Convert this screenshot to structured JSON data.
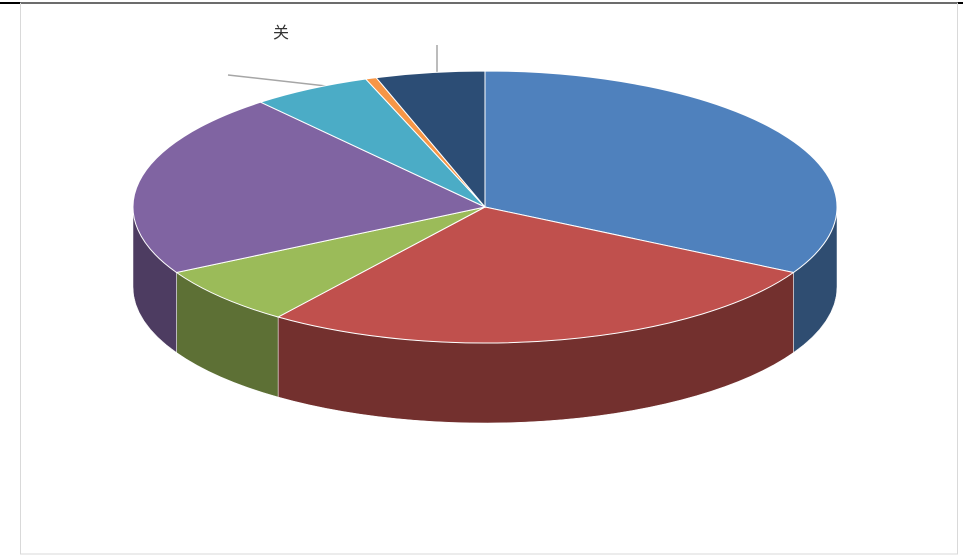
{
  "chart_data": {
    "type": "pie3d",
    "annotation": "关",
    "categories": [
      null,
      null,
      null,
      null,
      null,
      null,
      null
    ],
    "values": [
      33,
      27,
      7,
      22,
      5.5,
      0.5,
      5
    ],
    "colors": [
      "#4f81bd",
      "#c0504d",
      "#9bbb59",
      "#8064a2",
      "#4bacc6",
      "#f79646",
      "#2c4d75"
    ]
  }
}
